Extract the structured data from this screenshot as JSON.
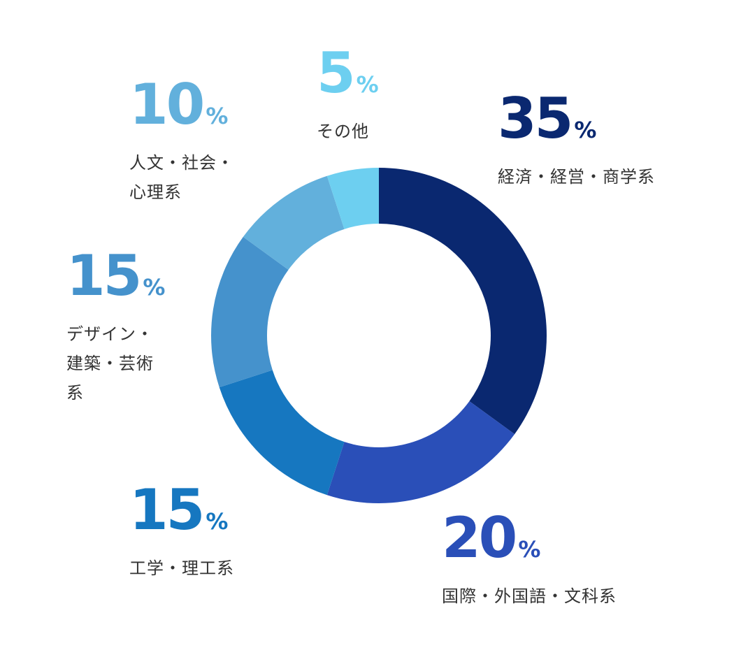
{
  "chart_data": {
    "type": "donut",
    "categories": [
      "経済・経営・商学系",
      "国際・外国語・文科系",
      "工学・理工系",
      "デザイン・建築・芸術系",
      "人文・社会・心理系",
      "その他"
    ],
    "values": [
      35,
      20,
      15,
      15,
      10,
      5
    ],
    "unit": "%",
    "colors": [
      "#0a2870",
      "#2a4fb8",
      "#1677c0",
      "#4592cc",
      "#62b0dc",
      "#6dcff0"
    ]
  }
}
